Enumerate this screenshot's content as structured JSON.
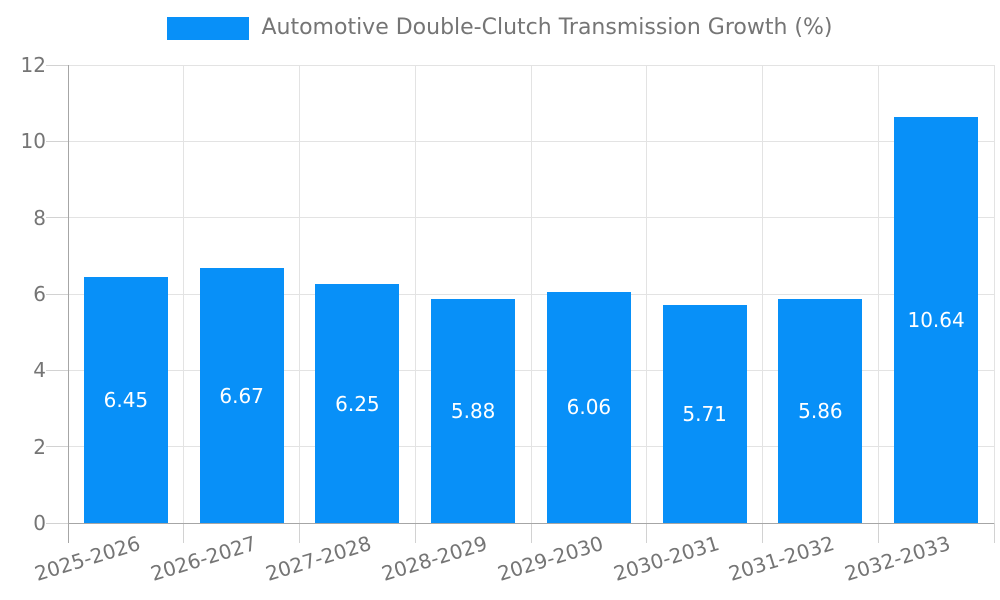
{
  "chart_data": {
    "type": "bar",
    "title": "Automotive Double-Clutch Transmission Growth (%)",
    "legend": [
      "Automotive Double-Clutch Transmission Growth (%)"
    ],
    "legend_position": "top-center",
    "categories": [
      "2025-2026",
      "2026-2027",
      "2027-2028",
      "2028-2029",
      "2029-2030",
      "2030-2031",
      "2031-2032",
      "2032-2033"
    ],
    "series": [
      {
        "name": "Automotive Double-Clutch Transmission Growth (%)",
        "values": [
          6.45,
          6.67,
          6.25,
          5.88,
          6.06,
          5.71,
          5.86,
          10.64
        ]
      }
    ],
    "value_labels": [
      "6.45",
      "6.67",
      "6.25",
      "5.88",
      "6.06",
      "5.71",
      "5.86",
      "10.64"
    ],
    "xlabel": "",
    "ylabel": "",
    "ylim": [
      0,
      12
    ],
    "yticks": [
      0,
      2,
      4,
      6,
      8,
      10,
      12
    ],
    "grid": true,
    "x_label_rotation_deg": -17,
    "colors": {
      "bar": "#0890F8",
      "value_label_text": "#ffffff",
      "axis_text": "#757575",
      "gridline": "#e3e3e3",
      "tick": "#d2d2d2",
      "axis_line": "#a6a6a6",
      "background": "#ffffff"
    }
  }
}
